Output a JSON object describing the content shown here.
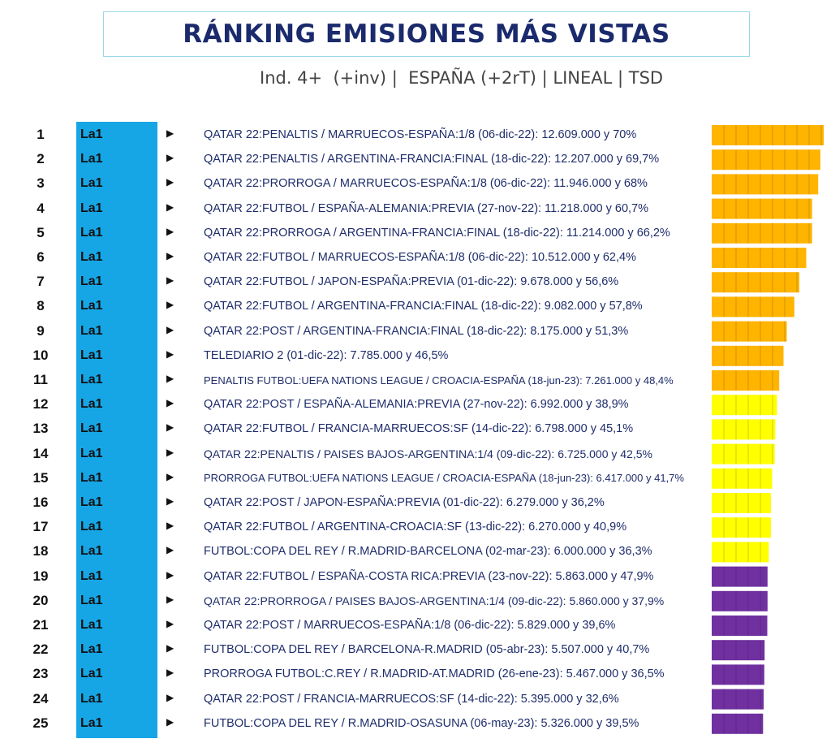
{
  "header": {
    "title": "RÁNKING EMISIONES MÁS VISTAS",
    "subtitle": "Ind. 4+  (+inv) |  ESPAÑA (+2rT) | LINEAL | TSD"
  },
  "colors": {
    "channel_band": "#16a6e6",
    "tier_orange": "#ffb400",
    "tier_yellow": "#ffff00",
    "tier_purple": "#7030a0"
  },
  "chart_data": {
    "type": "bar",
    "orientation": "horizontal",
    "value_unit": "audiencia media (espectadores) y share %",
    "rows": [
      {
        "rank": "1",
        "channel": "La1",
        "label": "QATAR 22:PENALTIS / MARRUECOS-ESPAÑA:1/8 (06-dic-22): 12.609.000 y 70%",
        "audience": 12609000,
        "share": 70.0,
        "tier": "orange"
      },
      {
        "rank": "2",
        "channel": "La1",
        "label": "QATAR 22:PENALTIS / ARGENTINA-FRANCIA:FINAL (18-dic-22): 12.207.000 y 69,7%",
        "audience": 12207000,
        "share": 69.7,
        "tier": "orange"
      },
      {
        "rank": "3",
        "channel": "La1",
        "label": "QATAR 22:PRORROGA / MARRUECOS-ESPAÑA:1/8 (06-dic-22): 11.946.000 y 68%",
        "audience": 11946000,
        "share": 68.0,
        "tier": "orange"
      },
      {
        "rank": "4",
        "channel": "La1",
        "label": "QATAR 22:FUTBOL / ESPAÑA-ALEMANIA:PREVIA (27-nov-22): 11.218.000 y 60,7%",
        "audience": 11218000,
        "share": 60.7,
        "tier": "orange"
      },
      {
        "rank": "5",
        "channel": "La1",
        "label": "QATAR 22:PRORROGA / ARGENTINA-FRANCIA:FINAL (18-dic-22): 11.214.000 y 66,2%",
        "audience": 11214000,
        "share": 66.2,
        "tier": "orange"
      },
      {
        "rank": "6",
        "channel": "La1",
        "label": "QATAR 22:FUTBOL / MARRUECOS-ESPAÑA:1/8 (06-dic-22): 10.512.000 y 62,4%",
        "audience": 10512000,
        "share": 62.4,
        "tier": "orange"
      },
      {
        "rank": "7",
        "channel": "La1",
        "label": "QATAR 22:FUTBOL / JAPON-ESPAÑA:PREVIA (01-dic-22): 9.678.000 y 56,6%",
        "audience": 9678000,
        "share": 56.6,
        "tier": "orange"
      },
      {
        "rank": "8",
        "channel": "La1",
        "label": "QATAR 22:FUTBOL / ARGENTINA-FRANCIA:FINAL (18-dic-22): 9.082.000 y 57,8%",
        "audience": 9082000,
        "share": 57.8,
        "tier": "orange"
      },
      {
        "rank": "9",
        "channel": "La1",
        "label": "QATAR 22:POST / ARGENTINA-FRANCIA:FINAL (18-dic-22): 8.175.000 y 51,3%",
        "audience": 8175000,
        "share": 51.3,
        "tier": "orange"
      },
      {
        "rank": "10",
        "channel": "La1",
        "label": "TELEDIARIO 2 (01-dic-22): 7.785.000 y 46,5%",
        "audience": 7785000,
        "share": 46.5,
        "tier": "orange"
      },
      {
        "rank": "11",
        "channel": "La1",
        "label": "PENALTIS FUTBOL:UEFA NATIONS LEAGUE / CROACIA-ESPAÑA (18-jun-23): 7.261.000 y 48,4%",
        "audience": 7261000,
        "share": 48.4,
        "tier": "orange"
      },
      {
        "rank": "12",
        "channel": "La1",
        "label": "QATAR 22:POST / ESPAÑA-ALEMANIA:PREVIA (27-nov-22): 6.992.000 y 38,9%",
        "audience": 6992000,
        "share": 38.9,
        "tier": "yellow"
      },
      {
        "rank": "13",
        "channel": "La1",
        "label": "QATAR 22:FUTBOL / FRANCIA-MARRUECOS:SF (14-dic-22): 6.798.000 y 45,1%",
        "audience": 6798000,
        "share": 45.1,
        "tier": "yellow"
      },
      {
        "rank": "14",
        "channel": "La1",
        "label": "QATAR 22:PENALTIS / PAISES BAJOS-ARGENTINA:1/4 (09-dic-22): 6.725.000 y 42,5%",
        "audience": 6725000,
        "share": 42.5,
        "tier": "yellow"
      },
      {
        "rank": "15",
        "channel": "La1",
        "label": "PRORROGA FUTBOL:UEFA NATIONS LEAGUE / CROACIA-ESPAÑA (18-jun-23): 6.417.000 y 41,7%",
        "audience": 6417000,
        "share": 41.7,
        "tier": "yellow"
      },
      {
        "rank": "16",
        "channel": "La1",
        "label": "QATAR 22:POST / JAPON-ESPAÑA:PREVIA (01-dic-22): 6.279.000 y 36,2%",
        "audience": 6279000,
        "share": 36.2,
        "tier": "yellow"
      },
      {
        "rank": "17",
        "channel": "La1",
        "label": "QATAR 22:FUTBOL / ARGENTINA-CROACIA:SF (13-dic-22): 6.270.000 y 40,9%",
        "audience": 6270000,
        "share": 40.9,
        "tier": "yellow"
      },
      {
        "rank": "18",
        "channel": "La1",
        "label": "FUTBOL:COPA DEL REY / R.MADRID-BARCELONA (02-mar-23): 6.000.000 y 36,3%",
        "audience": 6000000,
        "share": 36.3,
        "tier": "yellow"
      },
      {
        "rank": "19",
        "channel": "La1",
        "label": "QATAR 22:FUTBOL / ESPAÑA-COSTA RICA:PREVIA (23-nov-22): 5.863.000 y 47,9%",
        "audience": 5863000,
        "share": 47.9,
        "tier": "purple"
      },
      {
        "rank": "20",
        "channel": "La1",
        "label": "QATAR 22:PRORROGA / PAISES BAJOS-ARGENTINA:1/4 (09-dic-22): 5.860.000 y 37,9%",
        "audience": 5860000,
        "share": 37.9,
        "tier": "purple"
      },
      {
        "rank": "21",
        "channel": "La1",
        "label": "QATAR 22:POST / MARRUECOS-ESPAÑA:1/8 (06-dic-22): 5.829.000 y 39,6%",
        "audience": 5829000,
        "share": 39.6,
        "tier": "purple"
      },
      {
        "rank": "22",
        "channel": "La1",
        "label": "FUTBOL:COPA DEL REY / BARCELONA-R.MADRID (05-abr-23): 5.507.000 y 40,7%",
        "audience": 5507000,
        "share": 40.7,
        "tier": "purple"
      },
      {
        "rank": "23",
        "channel": "La1",
        "label": "PRORROGA FUTBOL:C.REY / R.MADRID-AT.MADRID (26-ene-23): 5.467.000 y 36,5%",
        "audience": 5467000,
        "share": 36.5,
        "tier": "purple"
      },
      {
        "rank": "24",
        "channel": "La1",
        "label": "QATAR 22:POST / FRANCIA-MARRUECOS:SF (14-dic-22): 5.395.000 y 32,6%",
        "audience": 5395000,
        "share": 32.6,
        "tier": "purple"
      },
      {
        "rank": "25",
        "channel": "La1",
        "label": "FUTBOL:COPA DEL REY / R.MADRID-OSASUNA (06-may-23): 5.326.000 y 39,5%",
        "audience": 5326000,
        "share": 39.5,
        "tier": "purple"
      }
    ]
  }
}
